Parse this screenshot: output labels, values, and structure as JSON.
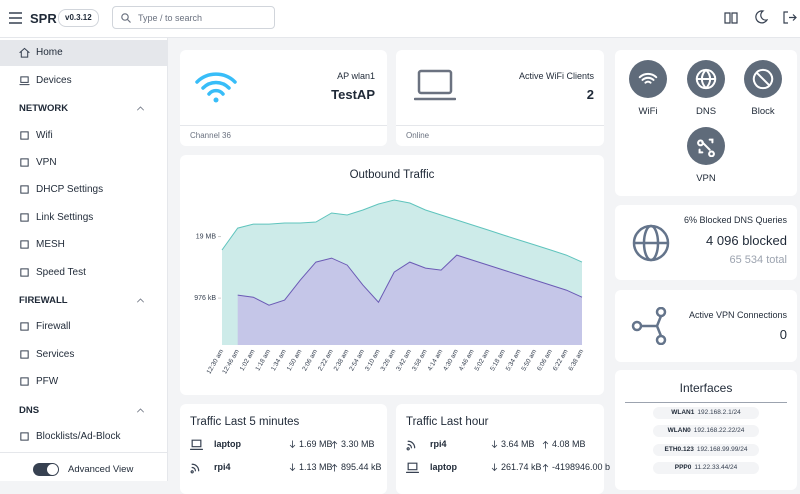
{
  "header": {
    "brand": "SPR",
    "version": "v0.3.12",
    "search_placeholder": "Type / to search"
  },
  "sidebar": {
    "nav": [
      "Home",
      "Devices"
    ],
    "sections": [
      {
        "title": "NETWORK",
        "items": [
          "Wifi",
          "VPN",
          "DHCP Settings",
          "Link Settings",
          "MESH",
          "Speed Test"
        ]
      },
      {
        "title": "FIREWALL",
        "items": [
          "Firewall",
          "Services",
          "PFW"
        ]
      },
      {
        "title": "DNS",
        "items": [
          "Blocklists/Ad-Block"
        ]
      }
    ],
    "advanced_view": "Advanced View"
  },
  "ap_card": {
    "label": "AP wlan1",
    "value": "TestAP",
    "footer": "Channel 36"
  },
  "clients_card": {
    "label": "Active WiFi Clients",
    "value": 2,
    "footer": "Online"
  },
  "quick_links": [
    "WiFi",
    "DNS",
    "Block",
    "VPN"
  ],
  "dns_card": {
    "title": "6% Blocked DNS Queries",
    "blocked": "4 096 blocked",
    "total": "65 534 total"
  },
  "vpn_card": {
    "label": "Active VPN Connections",
    "value": 0
  },
  "chart_data": {
    "type": "area",
    "title": "Outbound Traffic",
    "categories": [
      "12:30 am",
      "12:46 am",
      "1:02 am",
      "1:18 am",
      "1:34 am",
      "1:50 am",
      "2:06 am",
      "2:22 am",
      "2:38 am",
      "2:54 am",
      "3:10 am",
      "3:26 am",
      "3:42 am",
      "3:58 am",
      "4:14 am",
      "4:30 am",
      "4:46 am",
      "5:02 am",
      "5:18 am",
      "5:34 am",
      "5:50 am",
      "6:06 am",
      "6:22 am",
      "6:38 am"
    ],
    "series": [
      {
        "color": "#cdebe9",
        "line_color": "#5fc4bd",
        "values": [
          10100,
          29400,
          35700,
          35700,
          37600,
          37600,
          39400,
          61100,
          55500,
          70700,
          94700,
          115000,
          99400,
          70700,
          55500,
          43400,
          34100,
          26700,
          20900,
          16400,
          12900,
          10100,
          7900,
          5620
        ]
      },
      {
        "color": "#c5c6e8",
        "line_color": "#6b5bb5",
        "values": [
          null,
          1130,
          1020,
          693,
          885,
          2340,
          5620,
          6840,
          4860,
          1840,
          802,
          3460,
          5620,
          4200,
          3810,
          7900,
          6190,
          4860,
          3810,
          2990,
          2340,
          1840,
          1440,
          1020
        ]
      }
    ],
    "log_scale": true,
    "ylim": [
      100,
      630000
    ],
    "yticks": [
      {
        "value": 976,
        "label": "976 kB"
      },
      {
        "value": 19456,
        "label": "19 MB"
      }
    ]
  },
  "traffic_5min": {
    "title": "Traffic Last 5 minutes",
    "rows": [
      {
        "device": "laptop",
        "down": "1.69 MB",
        "up": "3.30 MB"
      },
      {
        "device": "rpi4",
        "down": "1.13 MB",
        "up": "895.44 kB"
      }
    ]
  },
  "traffic_hour": {
    "title": "Traffic Last hour",
    "rows": [
      {
        "device": "rpi4",
        "down": "3.64 MB",
        "up": "4.08 MB"
      },
      {
        "device": "laptop",
        "down": "261.74 kB",
        "up": "-4198946.00 b"
      }
    ]
  },
  "interfaces": {
    "title": "Interfaces",
    "items": [
      {
        "name": "WLAN1",
        "ip": "192.168.2.1/24"
      },
      {
        "name": "WLAN0",
        "ip": "192.168.22.22/24"
      },
      {
        "name": "ETH0.123",
        "ip": "192.168.99.99/24"
      },
      {
        "name": "PPP0",
        "ip": "11.22.33.44/24"
      }
    ]
  }
}
